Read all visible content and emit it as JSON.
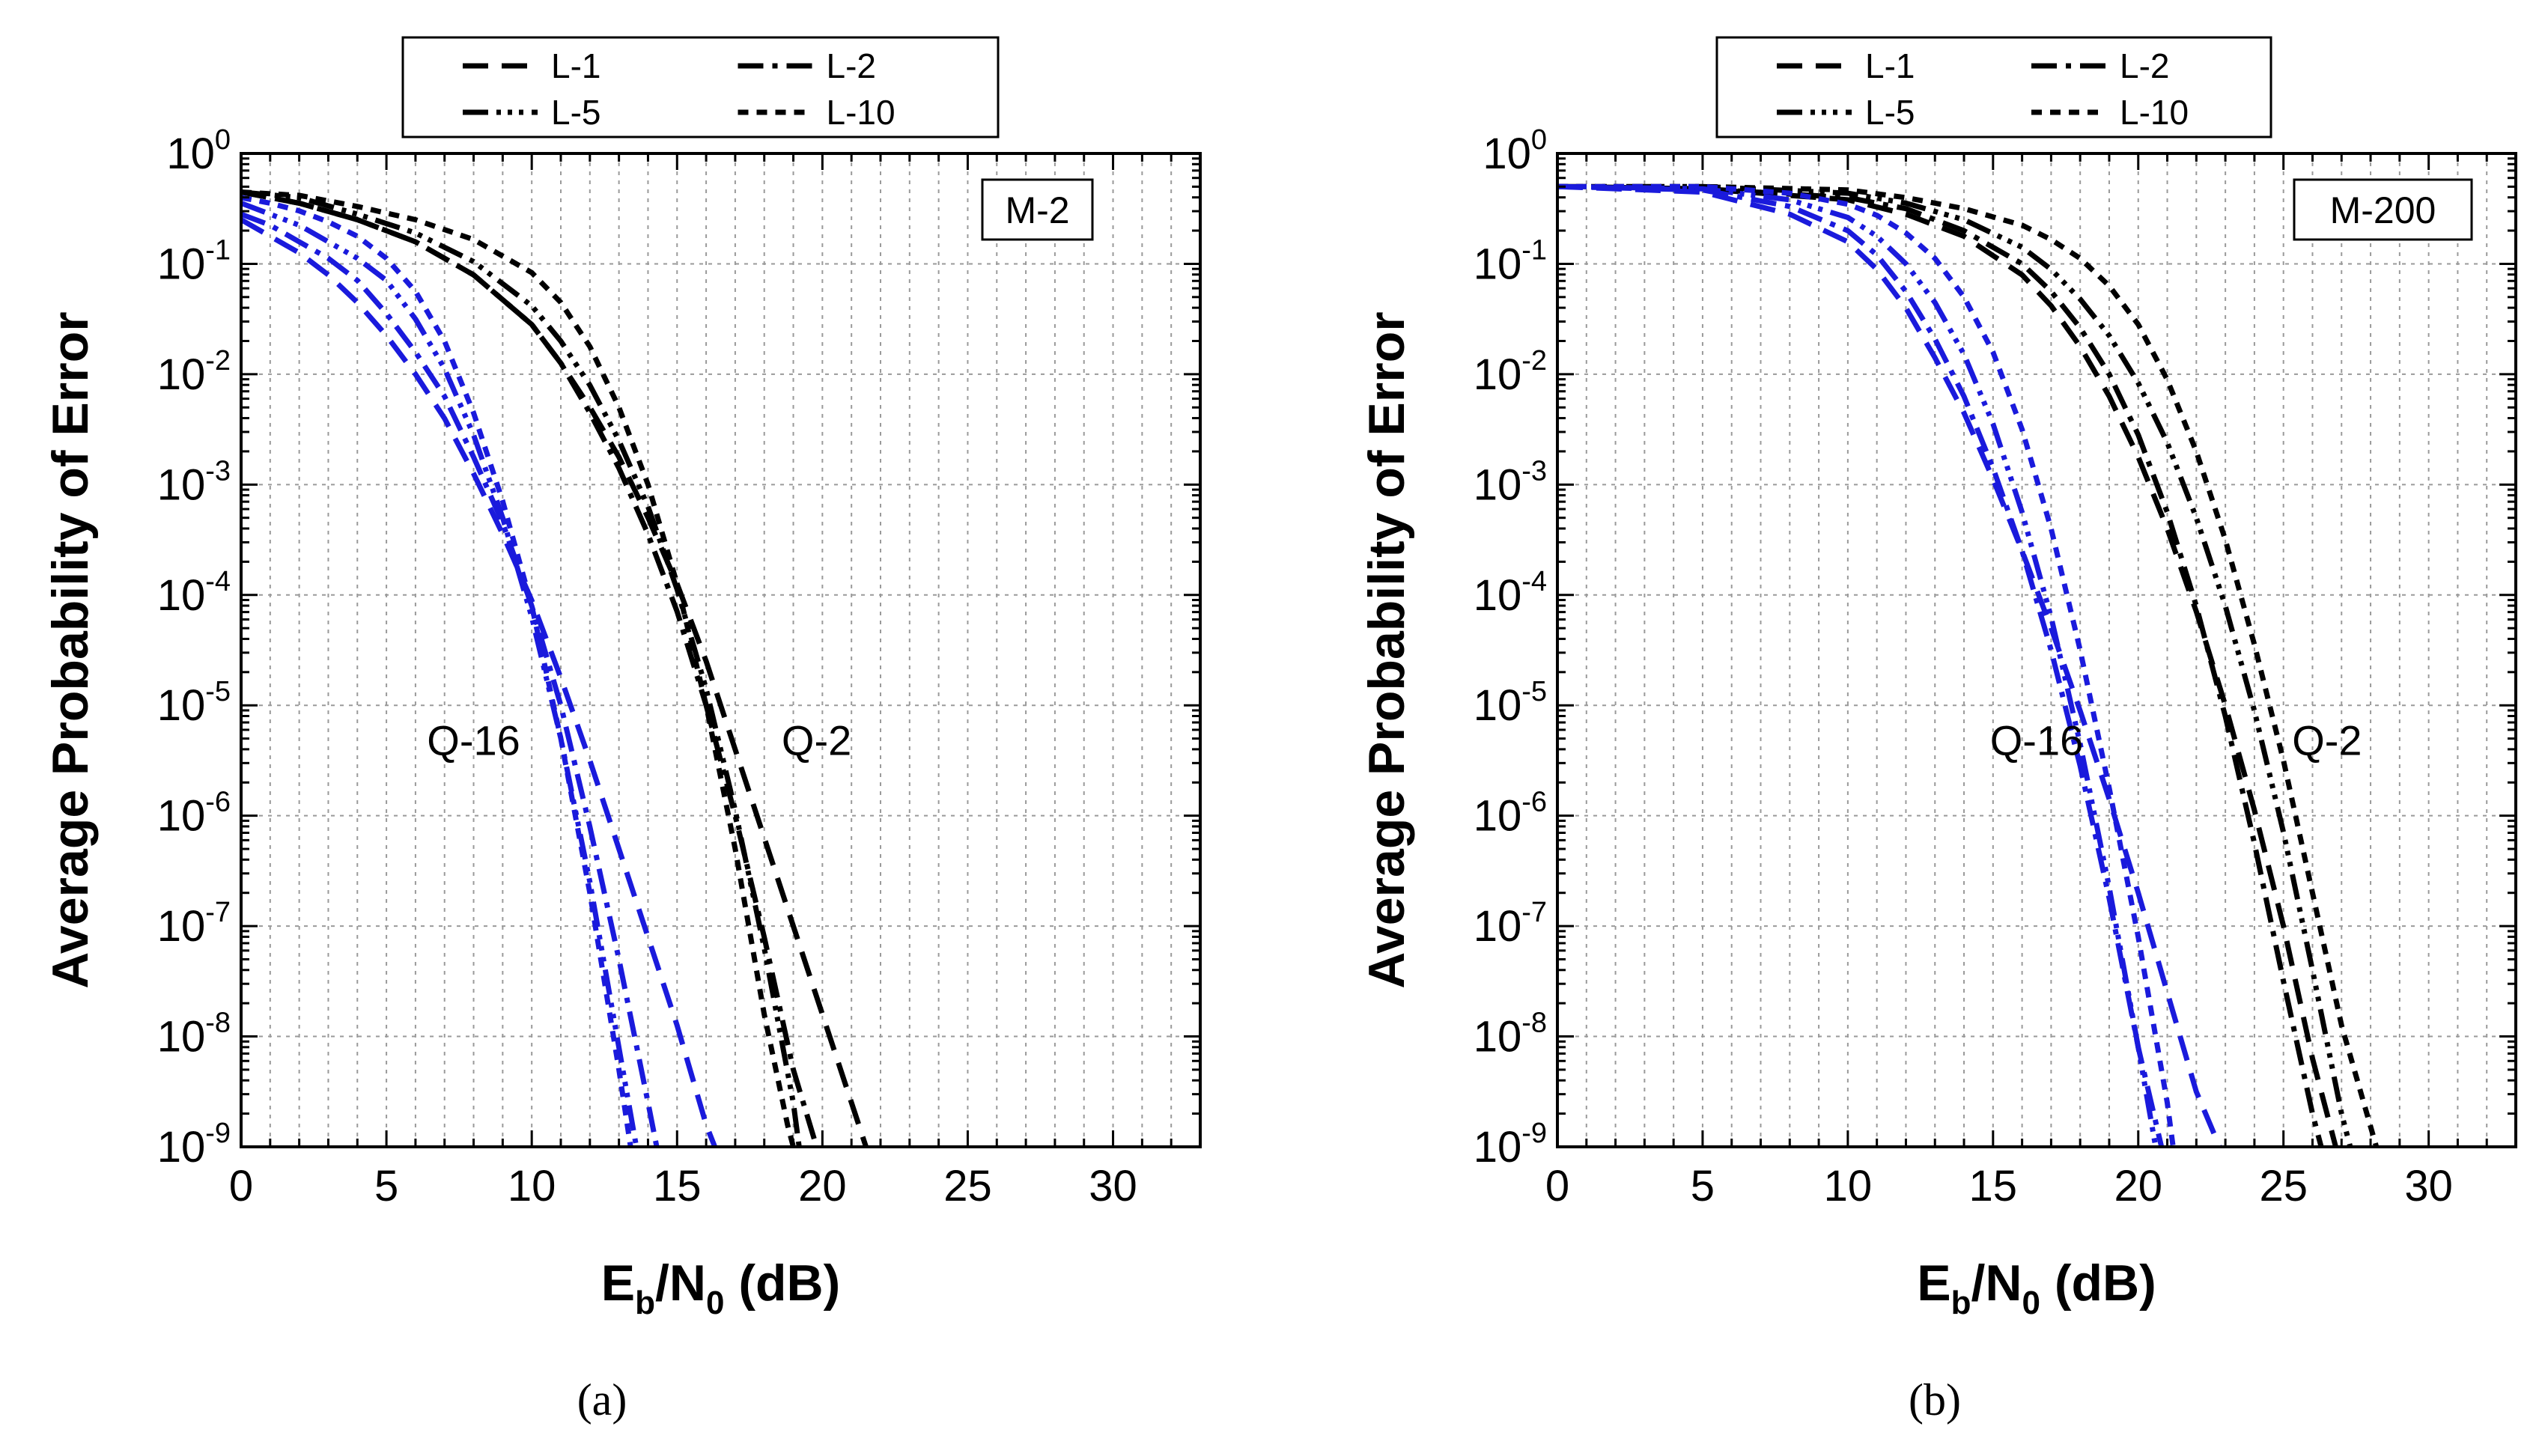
{
  "chart_data": [
    {
      "type": "line",
      "panel_tag": "M-2",
      "caption": "(a)",
      "xlabel": {
        "main": "E",
        "sub1": "b",
        "mid": "/N",
        "sub2": "0",
        "tail": " (dB)"
      },
      "ylabel": "Average Probability of Error",
      "xlim": [
        0,
        33
      ],
      "ylim_exp": [
        -9,
        0
      ],
      "yscale": "log",
      "grid": true,
      "x_ticks": [
        0,
        5,
        10,
        15,
        20,
        25,
        30
      ],
      "y_ticks": [
        {
          "base": "10",
          "exp": "0"
        },
        {
          "base": "10",
          "exp": "-1"
        },
        {
          "base": "10",
          "exp": "-2"
        },
        {
          "base": "10",
          "exp": "-3"
        },
        {
          "base": "10",
          "exp": "-4"
        },
        {
          "base": "10",
          "exp": "-5"
        },
        {
          "base": "10",
          "exp": "-6"
        },
        {
          "base": "10",
          "exp": "-7"
        },
        {
          "base": "10",
          "exp": "-8"
        },
        {
          "base": "10",
          "exp": "-9"
        }
      ],
      "legend": [
        "L-1",
        "L-2",
        "L-5",
        "L-10"
      ],
      "legend_position": "top-center-outside",
      "annotations": [
        {
          "text": "Q-16",
          "color": "#1a1adc",
          "x": 8.0,
          "y_exp": -5.45
        },
        {
          "text": "Q-2",
          "color": "#000000",
          "x": 19.8,
          "y_exp": -5.45
        }
      ],
      "series": [
        {
          "name": "Q-2 L-1",
          "group": "Q-2",
          "style": "L-1",
          "color": "#000000",
          "x": [
            0,
            2,
            4,
            6,
            8,
            10,
            11,
            12,
            13,
            14,
            15,
            16,
            17,
            18,
            19,
            20,
            21,
            21.5
          ],
          "y_exp": [
            -0.35,
            -0.45,
            -0.6,
            -0.8,
            -1.1,
            -1.55,
            -1.9,
            -2.3,
            -2.75,
            -3.3,
            -3.9,
            -4.6,
            -5.4,
            -6.2,
            -7.0,
            -7.8,
            -8.6,
            -9.0
          ]
        },
        {
          "name": "Q-2 L-2",
          "group": "Q-2",
          "style": "L-2",
          "color": "#000000",
          "x": [
            0,
            2,
            4,
            6,
            8,
            10,
            11,
            12,
            13,
            14,
            15,
            16,
            17,
            18,
            19,
            19.8
          ],
          "y_exp": [
            -0.35,
            -0.45,
            -0.6,
            -0.8,
            -1.1,
            -1.55,
            -1.9,
            -2.35,
            -2.85,
            -3.45,
            -4.15,
            -5.0,
            -6.0,
            -7.1,
            -8.3,
            -9.0
          ]
        },
        {
          "name": "Q-2 L-5",
          "group": "Q-2",
          "style": "L-5",
          "color": "#000000",
          "x": [
            0,
            2,
            4,
            6,
            8,
            10,
            11,
            12,
            13,
            14,
            15,
            16,
            17,
            18,
            19,
            19.2
          ],
          "y_exp": [
            -0.35,
            -0.4,
            -0.55,
            -0.72,
            -0.98,
            -1.38,
            -1.7,
            -2.1,
            -2.6,
            -3.2,
            -3.95,
            -4.85,
            -5.95,
            -7.2,
            -8.6,
            -9.0
          ]
        },
        {
          "name": "Q-2 L-10",
          "group": "Q-2",
          "style": "L-10",
          "color": "#000000",
          "x": [
            0,
            2,
            4,
            6,
            8,
            10,
            11,
            12,
            13,
            14,
            15,
            16,
            17,
            18,
            18.8,
            19.0
          ],
          "y_exp": [
            -0.35,
            -0.38,
            -0.48,
            -0.6,
            -0.78,
            -1.08,
            -1.35,
            -1.75,
            -2.3,
            -3.0,
            -3.9,
            -5.0,
            -6.3,
            -7.8,
            -8.8,
            -9.0
          ]
        },
        {
          "name": "Q-16 L-1",
          "group": "Q-16",
          "style": "L-1",
          "color": "#1a1adc",
          "x": [
            0,
            1,
            2,
            3,
            4,
            5,
            6,
            7,
            8,
            9,
            10,
            11,
            12,
            13,
            14,
            15,
            16,
            16.3
          ],
          "y_exp": [
            -0.6,
            -0.75,
            -0.9,
            -1.1,
            -1.35,
            -1.65,
            -2.0,
            -2.4,
            -2.9,
            -3.45,
            -4.05,
            -4.75,
            -5.5,
            -6.3,
            -7.1,
            -7.9,
            -8.8,
            -9.0
          ]
        },
        {
          "name": "Q-16 L-2",
          "group": "Q-16",
          "style": "L-2",
          "color": "#1a1adc",
          "x": [
            0,
            1,
            2,
            3,
            4,
            5,
            6,
            7,
            8,
            9,
            10,
            11,
            12,
            13,
            14,
            14.3
          ],
          "y_exp": [
            -0.55,
            -0.65,
            -0.8,
            -0.95,
            -1.15,
            -1.45,
            -1.8,
            -2.2,
            -2.75,
            -3.35,
            -4.1,
            -5.0,
            -6.1,
            -7.3,
            -8.6,
            -9.0
          ]
        },
        {
          "name": "Q-16 L-5",
          "group": "Q-16",
          "style": "L-5",
          "color": "#1a1adc",
          "x": [
            0,
            1,
            2,
            3,
            4,
            5,
            6,
            7,
            8,
            9,
            10,
            11,
            12,
            13,
            13.6
          ],
          "y_exp": [
            -0.45,
            -0.55,
            -0.65,
            -0.8,
            -0.95,
            -1.15,
            -1.5,
            -1.95,
            -2.55,
            -3.3,
            -4.2,
            -5.3,
            -6.6,
            -8.1,
            -9.0
          ]
        },
        {
          "name": "Q-16 L-10",
          "group": "Q-16",
          "style": "L-10",
          "color": "#1a1adc",
          "x": [
            0,
            1,
            2,
            3,
            4,
            5,
            6,
            7,
            8,
            9,
            10,
            11,
            12,
            13,
            13.4
          ],
          "y_exp": [
            -0.4,
            -0.45,
            -0.52,
            -0.62,
            -0.75,
            -0.95,
            -1.25,
            -1.7,
            -2.35,
            -3.15,
            -4.1,
            -5.3,
            -6.7,
            -8.3,
            -9.0
          ]
        }
      ]
    },
    {
      "type": "line",
      "panel_tag": "M-200",
      "caption": "(b)",
      "xlabel": {
        "main": "E",
        "sub1": "b",
        "mid": "/N",
        "sub2": "0",
        "tail": " (dB)"
      },
      "ylabel": "Average Probability of Error",
      "xlim": [
        0,
        33
      ],
      "ylim_exp": [
        -9,
        0
      ],
      "yscale": "log",
      "grid": true,
      "x_ticks": [
        0,
        5,
        10,
        15,
        20,
        25,
        30
      ],
      "y_ticks": [
        {
          "base": "10",
          "exp": "0"
        },
        {
          "base": "10",
          "exp": "-1"
        },
        {
          "base": "10",
          "exp": "-2"
        },
        {
          "base": "10",
          "exp": "-3"
        },
        {
          "base": "10",
          "exp": "-4"
        },
        {
          "base": "10",
          "exp": "-5"
        },
        {
          "base": "10",
          "exp": "-6"
        },
        {
          "base": "10",
          "exp": "-7"
        },
        {
          "base": "10",
          "exp": "-8"
        },
        {
          "base": "10",
          "exp": "-9"
        }
      ],
      "legend": [
        "L-1",
        "L-2",
        "L-5",
        "L-10"
      ],
      "legend_position": "top-center-outside",
      "annotations": [
        {
          "text": "Q-16",
          "color": "#1a1adc",
          "x": 16.5,
          "y_exp": -5.45
        },
        {
          "text": "Q-2",
          "color": "#000000",
          "x": 26.5,
          "y_exp": -5.45
        }
      ],
      "series": [
        {
          "name": "Q-2 L-1",
          "group": "Q-2",
          "style": "L-1",
          "color": "#000000",
          "x": [
            0,
            5,
            10,
            12,
            14,
            16,
            17,
            18,
            19,
            20,
            21,
            22,
            23,
            24,
            25,
            26,
            26.8
          ],
          "y_exp": [
            -0.3,
            -0.32,
            -0.42,
            -0.55,
            -0.75,
            -1.1,
            -1.38,
            -1.75,
            -2.2,
            -2.75,
            -3.4,
            -4.15,
            -5.0,
            -5.95,
            -7.0,
            -8.2,
            -9.0
          ]
        },
        {
          "name": "Q-2 L-2",
          "group": "Q-2",
          "style": "L-2",
          "color": "#000000",
          "x": [
            0,
            5,
            10,
            12,
            14,
            16,
            17,
            18,
            19,
            20,
            21,
            22,
            23,
            24,
            25,
            26,
            26.3
          ],
          "y_exp": [
            -0.3,
            -0.32,
            -0.4,
            -0.5,
            -0.7,
            -1.0,
            -1.25,
            -1.58,
            -2.0,
            -2.55,
            -3.25,
            -4.1,
            -5.1,
            -6.25,
            -7.5,
            -8.7,
            -9.0
          ]
        },
        {
          "name": "Q-2 L-5",
          "group": "Q-2",
          "style": "L-5",
          "color": "#000000",
          "x": [
            0,
            5,
            10,
            12,
            14,
            16,
            17,
            18,
            19,
            20,
            21,
            22,
            23,
            24,
            25,
            26,
            27,
            27.3
          ],
          "y_exp": [
            -0.3,
            -0.3,
            -0.36,
            -0.45,
            -0.6,
            -0.85,
            -1.05,
            -1.32,
            -1.65,
            -2.08,
            -2.62,
            -3.3,
            -4.1,
            -5.05,
            -6.15,
            -7.4,
            -8.7,
            -9.0
          ]
        },
        {
          "name": "Q-2 L-10",
          "group": "Q-2",
          "style": "L-10",
          "color": "#000000",
          "x": [
            0,
            5,
            10,
            12,
            14,
            16,
            17,
            18,
            19,
            20,
            21,
            22,
            23,
            24,
            25,
            26,
            27,
            28.2
          ],
          "y_exp": [
            -0.3,
            -0.3,
            -0.33,
            -0.4,
            -0.5,
            -0.65,
            -0.78,
            -0.95,
            -1.2,
            -1.55,
            -2.05,
            -2.7,
            -3.5,
            -4.45,
            -5.5,
            -6.7,
            -7.9,
            -9.0
          ]
        },
        {
          "name": "Q-16 L-1",
          "group": "Q-16",
          "style": "L-1",
          "color": "#1a1adc",
          "x": [
            0,
            5,
            8,
            10,
            11,
            12,
            13,
            14,
            15,
            16,
            17,
            18,
            19,
            20,
            21,
            22,
            22.8
          ],
          "y_exp": [
            -0.3,
            -0.35,
            -0.55,
            -0.8,
            -1.05,
            -1.4,
            -1.85,
            -2.35,
            -2.95,
            -3.6,
            -4.3,
            -5.05,
            -5.85,
            -6.7,
            -7.6,
            -8.5,
            -9.0
          ]
        },
        {
          "name": "Q-16 L-2",
          "group": "Q-16",
          "style": "L-2",
          "color": "#1a1adc",
          "x": [
            0,
            5,
            8,
            10,
            11,
            12,
            13,
            14,
            15,
            16,
            17,
            18,
            19,
            20,
            20.8
          ],
          "y_exp": [
            -0.3,
            -0.33,
            -0.48,
            -0.7,
            -0.92,
            -1.25,
            -1.68,
            -2.2,
            -2.85,
            -3.6,
            -4.5,
            -5.55,
            -6.75,
            -8.1,
            -9.0
          ]
        },
        {
          "name": "Q-16 L-5",
          "group": "Q-16",
          "style": "L-5",
          "color": "#1a1adc",
          "x": [
            0,
            5,
            8,
            10,
            11,
            12,
            13,
            14,
            15,
            16,
            17,
            18,
            19,
            20,
            20.6
          ],
          "y_exp": [
            -0.3,
            -0.32,
            -0.42,
            -0.58,
            -0.75,
            -1.0,
            -1.35,
            -1.82,
            -2.45,
            -3.25,
            -4.2,
            -5.35,
            -6.65,
            -8.1,
            -9.0
          ]
        },
        {
          "name": "Q-16 L-10",
          "group": "Q-16",
          "style": "L-10",
          "color": "#1a1adc",
          "x": [
            0,
            5,
            8,
            10,
            11,
            12,
            13,
            14,
            15,
            16,
            17,
            18,
            19,
            20,
            21,
            21.2
          ],
          "y_exp": [
            -0.3,
            -0.3,
            -0.36,
            -0.46,
            -0.56,
            -0.72,
            -0.95,
            -1.3,
            -1.8,
            -2.5,
            -3.4,
            -4.5,
            -5.75,
            -7.1,
            -8.6,
            -9.0
          ]
        }
      ]
    }
  ]
}
